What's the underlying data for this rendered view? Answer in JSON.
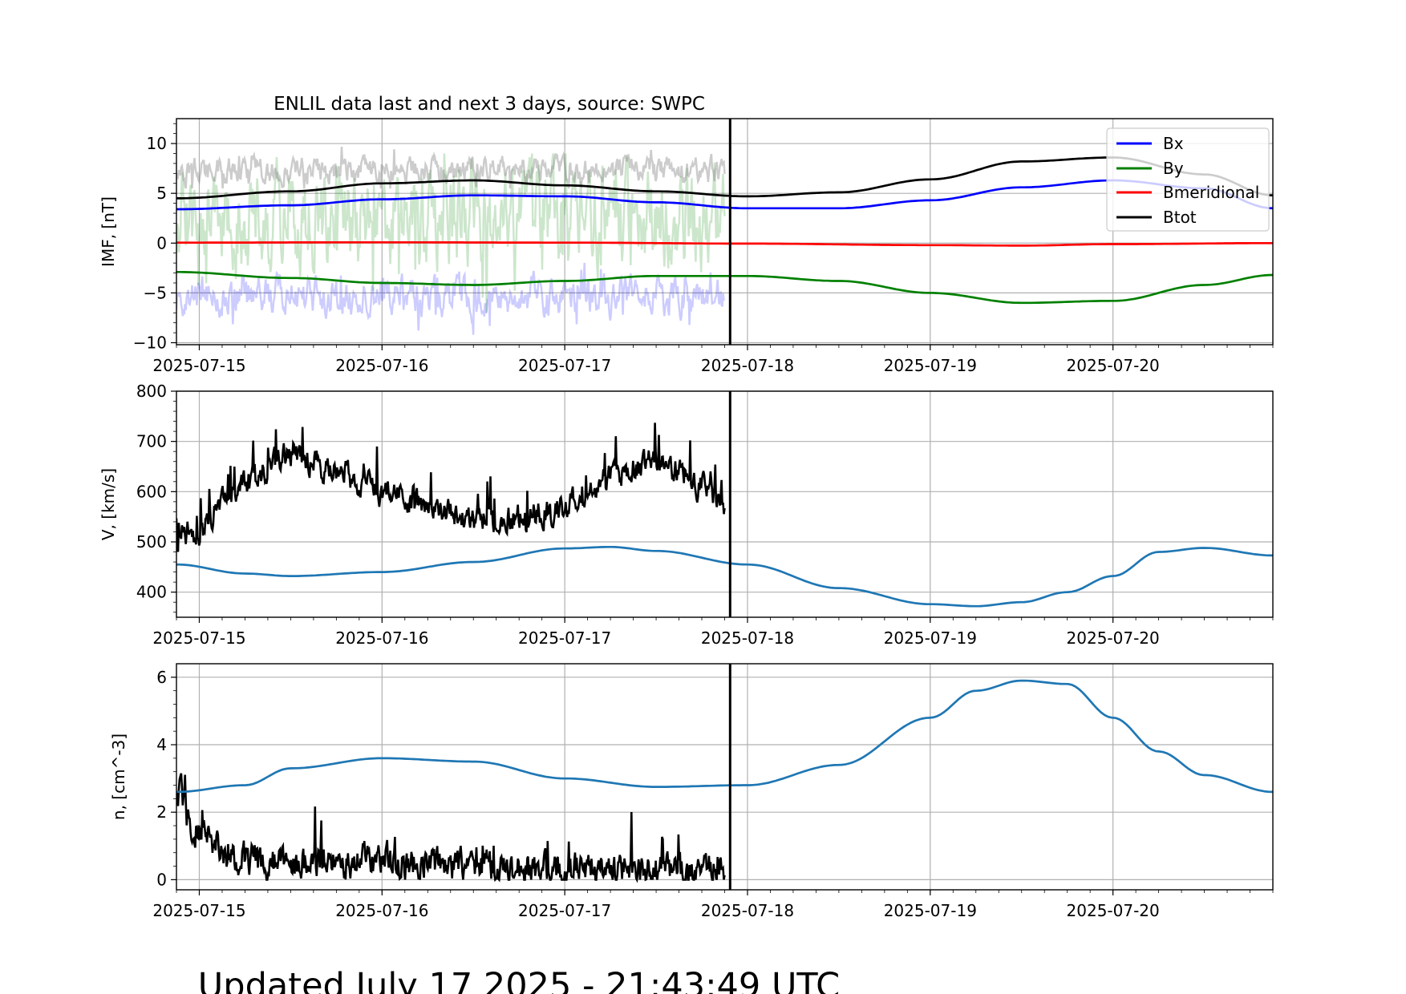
{
  "title": "ENLIL data last and next 3 days, source: SWPC",
  "footer": "Updated July 17 2025 - 21:43:49 UTC",
  "colors": {
    "bx": "#0000ff",
    "by": "#008000",
    "bmeridional": "#ff0000",
    "btot": "#000000",
    "model": "#1f77b4",
    "observed": "#000000",
    "grid": "#b0b0b0"
  },
  "chart_data": [
    {
      "type": "line",
      "panel": "imf",
      "title": "ENLIL data last and next 3 days, source: SWPC",
      "ylabel": "IMF, [nT]",
      "xlabel": "",
      "x_type": "date",
      "xlim": [
        "2025-07-14T21:00",
        "2025-07-20T21:00"
      ],
      "ylim": [
        -10.2,
        12.5
      ],
      "yticks": [
        -10,
        -5,
        0,
        5,
        10
      ],
      "xtick_labels": [
        "2025-07-15",
        "2025-07-16",
        "2025-07-17",
        "2025-07-18",
        "2025-07-19",
        "2025-07-20"
      ],
      "grid": true,
      "legend_position": "top-right",
      "now": "2025-07-17T21:43",
      "series": [
        {
          "name": "Bx",
          "color": "#0000ff",
          "kind": "model",
          "x": [
            "2025-07-14T21:00",
            "2025-07-15T12:00",
            "2025-07-16T00:00",
            "2025-07-16T12:00",
            "2025-07-17T00:00",
            "2025-07-17T12:00",
            "2025-07-18T00:00",
            "2025-07-18T12:00",
            "2025-07-19T00:00",
            "2025-07-19T12:00",
            "2025-07-20T00:00",
            "2025-07-20T12:00",
            "2025-07-20T21:00"
          ],
          "y": [
            3.4,
            3.8,
            4.4,
            4.8,
            4.7,
            4.1,
            3.5,
            3.5,
            4.3,
            5.6,
            6.3,
            5.5,
            3.5
          ]
        },
        {
          "name": "By",
          "color": "#008000",
          "kind": "model",
          "x": [
            "2025-07-14T21:00",
            "2025-07-15T12:00",
            "2025-07-16T00:00",
            "2025-07-16T12:00",
            "2025-07-17T00:00",
            "2025-07-17T12:00",
            "2025-07-18T00:00",
            "2025-07-18T12:00",
            "2025-07-19T00:00",
            "2025-07-19T12:00",
            "2025-07-20T00:00",
            "2025-07-20T12:00",
            "2025-07-20T21:00"
          ],
          "y": [
            -2.9,
            -3.5,
            -4.0,
            -4.2,
            -3.8,
            -3.3,
            -3.3,
            -3.8,
            -5.0,
            -6.0,
            -5.8,
            -4.2,
            -3.2
          ]
        },
        {
          "name": "Bmeridional",
          "color": "#ff0000",
          "kind": "model",
          "x": [
            "2025-07-14T21:00",
            "2025-07-16T00:00",
            "2025-07-17T00:00",
            "2025-07-18T00:00",
            "2025-07-19T00:00",
            "2025-07-19T12:00",
            "2025-07-20T00:00",
            "2025-07-20T21:00"
          ],
          "y": [
            0.05,
            0.08,
            0.05,
            -0.05,
            -0.2,
            -0.25,
            -0.1,
            0.0
          ]
        },
        {
          "name": "Btot",
          "color": "#000000",
          "kind": "model",
          "x": [
            "2025-07-14T21:00",
            "2025-07-15T12:00",
            "2025-07-16T00:00",
            "2025-07-16T12:00",
            "2025-07-17T00:00",
            "2025-07-17T12:00",
            "2025-07-18T00:00",
            "2025-07-18T12:00",
            "2025-07-19T00:00",
            "2025-07-19T12:00",
            "2025-07-20T00:00",
            "2025-07-20T12:00",
            "2025-07-20T21:00"
          ],
          "y": [
            4.5,
            5.2,
            6.0,
            6.3,
            5.8,
            5.2,
            4.7,
            5.1,
            6.4,
            8.2,
            8.6,
            6.9,
            4.8
          ]
        },
        {
          "kind": "observed",
          "component": "Bx",
          "color": "#0000ff",
          "opacity": 0.2,
          "x_range": [
            "2025-07-14T21:00",
            "2025-07-17T21:00"
          ],
          "mean": -5.3,
          "spread": 1.6,
          "min": -9.2,
          "max": 2.5
        },
        {
          "kind": "observed",
          "component": "By",
          "color": "#008000",
          "opacity": 0.2,
          "x_range": [
            "2025-07-14T21:00",
            "2025-07-17T21:00"
          ],
          "mean": 2.5,
          "spread": 4.0,
          "min": -7.0,
          "max": 9.0
        },
        {
          "kind": "observed",
          "component": "Btot",
          "color": "#808080",
          "opacity": 0.4,
          "x_range": [
            "2025-07-14T21:00",
            "2025-07-17T21:00"
          ],
          "mean": 7.3,
          "spread": 1.1,
          "min": 5.5,
          "max": 11.5
        }
      ]
    },
    {
      "type": "line",
      "panel": "speed",
      "ylabel": "V, [km/s]",
      "xlabel": "",
      "x_type": "date",
      "xlim": [
        "2025-07-14T21:00",
        "2025-07-20T21:00"
      ],
      "ylim": [
        350,
        800
      ],
      "yticks": [
        400,
        500,
        600,
        700,
        800
      ],
      "xtick_labels": [
        "2025-07-15",
        "2025-07-16",
        "2025-07-17",
        "2025-07-18",
        "2025-07-19",
        "2025-07-20"
      ],
      "grid": true,
      "now": "2025-07-17T21:43",
      "series": [
        {
          "kind": "model",
          "color": "#1f77b4",
          "x": [
            "2025-07-14T21:00",
            "2025-07-15T06:00",
            "2025-07-15T12:00",
            "2025-07-16T00:00",
            "2025-07-16T12:00",
            "2025-07-17T00:00",
            "2025-07-17T06:00",
            "2025-07-17T12:00",
            "2025-07-18T00:00",
            "2025-07-18T12:00",
            "2025-07-19T00:00",
            "2025-07-19T06:00",
            "2025-07-19T12:00",
            "2025-07-19T18:00",
            "2025-07-20T00:00",
            "2025-07-20T06:00",
            "2025-07-20T12:00",
            "2025-07-20T21:00"
          ],
          "y": [
            455,
            437,
            432,
            440,
            460,
            487,
            490,
            482,
            455,
            408,
            376,
            372,
            380,
            400,
            432,
            480,
            488,
            473
          ]
        },
        {
          "kind": "observed",
          "color": "#000000",
          "x": [
            "2025-07-14T21:00",
            "2025-07-15T00:00",
            "2025-07-15T03:00",
            "2025-07-15T12:00",
            "2025-07-16T00:00",
            "2025-07-16T06:00",
            "2025-07-16T12:00",
            "2025-07-17T00:00",
            "2025-07-17T06:00",
            "2025-07-17T12:00",
            "2025-07-17T18:00",
            "2025-07-17T21:00"
          ],
          "y": [
            515,
            520,
            580,
            680,
            600,
            570,
            540,
            565,
            630,
            660,
            610,
            570
          ],
          "noise": 25
        }
      ]
    },
    {
      "type": "line",
      "panel": "density",
      "ylabel": "n, [cm^-3]",
      "xlabel": "",
      "x_type": "date",
      "xlim": [
        "2025-07-14T21:00",
        "2025-07-20T21:00"
      ],
      "ylim": [
        -0.3,
        6.4
      ],
      "yticks": [
        0,
        2,
        4,
        6
      ],
      "xtick_labels": [
        "2025-07-15",
        "2025-07-16",
        "2025-07-17",
        "2025-07-18",
        "2025-07-19",
        "2025-07-20"
      ],
      "grid": true,
      "now": "2025-07-17T21:43",
      "series": [
        {
          "kind": "model",
          "color": "#1f77b4",
          "x": [
            "2025-07-14T21:00",
            "2025-07-15T06:00",
            "2025-07-15T12:00",
            "2025-07-16T00:00",
            "2025-07-16T12:00",
            "2025-07-17T00:00",
            "2025-07-17T12:00",
            "2025-07-18T00:00",
            "2025-07-18T12:00",
            "2025-07-19T00:00",
            "2025-07-19T06:00",
            "2025-07-19T12:00",
            "2025-07-19T18:00",
            "2025-07-20T00:00",
            "2025-07-20T06:00",
            "2025-07-20T12:00",
            "2025-07-20T21:00"
          ],
          "y": [
            2.6,
            2.8,
            3.3,
            3.6,
            3.5,
            3.0,
            2.75,
            2.8,
            3.4,
            4.8,
            5.6,
            5.9,
            5.8,
            4.8,
            3.8,
            3.1,
            2.6
          ]
        },
        {
          "kind": "observed",
          "color": "#000000",
          "x": [
            "2025-07-14T21:00",
            "2025-07-14T23:00",
            "2025-07-15T02:00",
            "2025-07-15T06:00",
            "2025-07-15T12:00",
            "2025-07-16T00:00",
            "2025-07-16T12:00",
            "2025-07-17T00:00",
            "2025-07-17T12:00",
            "2025-07-17T21:00"
          ],
          "y": [
            3.0,
            1.5,
            1.0,
            0.6,
            0.5,
            0.6,
            0.4,
            0.3,
            0.3,
            0.2
          ],
          "noise": 0.45
        }
      ]
    }
  ]
}
